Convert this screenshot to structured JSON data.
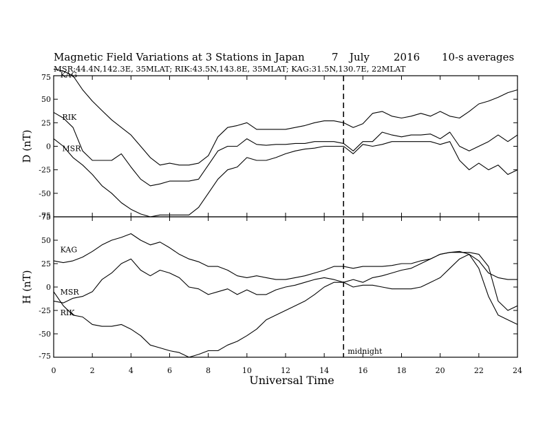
{
  "chart_data": {
    "type": "line",
    "title": "Magnetic Field Variations at 3 Stations in Japan",
    "date": {
      "day": "7",
      "month": "July",
      "year": "2016"
    },
    "note": "10-s averages",
    "stations_info": "MSR:44.4N,142.3E, 35MLAT;  RIK:43.5N,143.8E, 35MLAT;  KAG:31.5N,130.7E, 22MLAT",
    "xlabel": "Universal Time",
    "xlim": [
      0,
      24
    ],
    "xticks": [
      "0",
      "2",
      "4",
      "6",
      "8",
      "10",
      "12",
      "14",
      "16",
      "18",
      "20",
      "22",
      "24"
    ],
    "x_ticks_values": [
      0,
      2,
      4,
      6,
      8,
      10,
      12,
      14,
      16,
      18,
      20,
      22,
      24
    ],
    "grid": false,
    "annotations": [
      {
        "text": "midnight",
        "x": 15
      }
    ],
    "marker_line": {
      "x": 15,
      "style": "dashed"
    },
    "x": [
      0,
      0.5,
      1,
      1.5,
      2,
      2.5,
      3,
      3.5,
      4,
      4.5,
      5,
      5.5,
      6,
      6.5,
      7,
      7.5,
      8,
      8.5,
      9,
      9.5,
      10,
      10.5,
      11,
      11.5,
      12,
      12.5,
      13,
      13.5,
      14,
      14.5,
      15,
      15.5,
      16,
      16.5,
      17,
      17.5,
      18,
      18.5,
      19,
      19.5,
      20,
      20.5,
      21,
      21.5,
      22,
      22.5,
      23,
      23.5,
      24
    ],
    "panels": [
      {
        "ylabel": "D (nT)",
        "ylim": [
          -75,
          75
        ],
        "yticks": [
          "75",
          "50",
          "25",
          "0",
          "-25",
          "-50",
          "-75"
        ],
        "y_ticks_values": [
          75,
          50,
          25,
          0,
          -25,
          -50,
          -75
        ],
        "series": [
          {
            "name": "KAG",
            "label_pos": {
              "x": 0.2,
              "y": 73
            },
            "values": [
              82,
              80,
              75,
              60,
              48,
              38,
              28,
              20,
              12,
              0,
              -12,
              -20,
              -18,
              -20,
              -20,
              -18,
              -10,
              10,
              20,
              22,
              25,
              18,
              18,
              18,
              18,
              20,
              22,
              25,
              27,
              27,
              25,
              20,
              24,
              35,
              37,
              32,
              30,
              32,
              35,
              32,
              37,
              32,
              30,
              37,
              45,
              48,
              52,
              57,
              60
            ]
          },
          {
            "name": "RIK",
            "label_pos": {
              "x": 0.3,
              "y": 28
            },
            "values": [
              36,
              30,
              20,
              -5,
              -15,
              -15,
              -15,
              -8,
              -22,
              -35,
              -42,
              -40,
              -37,
              -37,
              -37,
              -35,
              -20,
              -5,
              0,
              0,
              8,
              2,
              1,
              2,
              2,
              3,
              3,
              5,
              5,
              5,
              3,
              -5,
              5,
              5,
              15,
              12,
              10,
              12,
              12,
              13,
              8,
              15,
              0,
              -5,
              0,
              5,
              12,
              5,
              12
            ]
          },
          {
            "name": "MSR",
            "label_pos": {
              "x": 0.3,
              "y": -5
            },
            "values": [
              8,
              0,
              -12,
              -20,
              -30,
              -42,
              -50,
              -60,
              -67,
              -72,
              -75,
              -73,
              -73,
              -73,
              -73,
              -65,
              -50,
              -35,
              -25,
              -22,
              -12,
              -15,
              -15,
              -12,
              -8,
              -5,
              -3,
              -2,
              0,
              0,
              0,
              -8,
              2,
              0,
              2,
              5,
              5,
              5,
              5,
              5,
              2,
              5,
              -15,
              -25,
              -18,
              -25,
              -20,
              -30,
              -25
            ]
          }
        ]
      },
      {
        "ylabel": "H (nT)",
        "ylim": [
          -75,
          75
        ],
        "yticks": [
          "75",
          "50",
          "25",
          "0",
          "-25",
          "-50",
          "-75"
        ],
        "y_ticks_values": [
          75,
          50,
          25,
          0,
          -25,
          -50,
          -75
        ],
        "series": [
          {
            "name": "KAG",
            "label_pos": {
              "x": 0.2,
              "y": 37
            },
            "values": [
              28,
              26,
              28,
              32,
              38,
              45,
              50,
              53,
              57,
              50,
              45,
              48,
              42,
              35,
              30,
              27,
              22,
              22,
              18,
              12,
              10,
              12,
              10,
              8,
              8,
              10,
              12,
              15,
              18,
              22,
              22,
              20,
              22,
              22,
              22,
              23,
              25,
              25,
              28,
              30,
              35,
              37,
              38,
              35,
              28,
              15,
              10,
              8,
              8
            ]
          },
          {
            "name": "MSR",
            "label_pos": {
              "x": 0.2,
              "y": -8
            },
            "values": [
              -15,
              -17,
              -12,
              -10,
              -5,
              8,
              15,
              25,
              30,
              18,
              12,
              18,
              15,
              10,
              0,
              -2,
              -8,
              -5,
              -2,
              -8,
              -3,
              -8,
              -8,
              -3,
              0,
              2,
              5,
              8,
              10,
              8,
              5,
              8,
              5,
              10,
              12,
              15,
              18,
              20,
              25,
              30,
              35,
              37,
              37,
              37,
              35,
              22,
              -15,
              -25,
              -20
            ]
          },
          {
            "name": "RIK",
            "label_pos": {
              "x": 0.2,
              "y": -30
            },
            "values": [
              -5,
              -20,
              -30,
              -32,
              -40,
              -42,
              -42,
              -40,
              -45,
              -52,
              -62,
              -65,
              -68,
              -70,
              -75,
              -72,
              -68,
              -68,
              -62,
              -58,
              -52,
              -45,
              -35,
              -30,
              -25,
              -20,
              -15,
              -8,
              0,
              5,
              5,
              0,
              2,
              2,
              0,
              -2,
              -2,
              -2,
              0,
              5,
              10,
              20,
              30,
              35,
              20,
              -10,
              -30,
              -35,
              -40
            ]
          }
        ]
      }
    ]
  }
}
